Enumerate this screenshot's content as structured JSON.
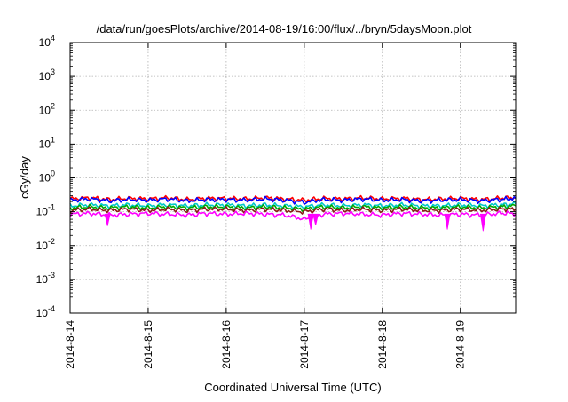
{
  "chart_data": {
    "type": "line",
    "title": "/data/run/goesPlots/archive/2014-08-19/16:00/flux/../bryn/5daysMoon.plot",
    "xlabel": "Coordinated Universal Time (UTC)",
    "ylabel": "cGy/day",
    "yscale": "log",
    "ylim": [
      0.0001,
      10000
    ],
    "xlim": [
      "2014-08-14T00:00",
      "2014-08-19T17:00"
    ],
    "grid": true,
    "legend": "none",
    "x_ticks": [
      "2014-8-14",
      "2014-8-15",
      "2014-8-16",
      "2014-8-17",
      "2014-8-18",
      "2014-8-19"
    ],
    "y_ticks": [
      {
        "base": "10",
        "exp": "-4",
        "value": 0.0001
      },
      {
        "base": "10",
        "exp": "-3",
        "value": 0.001
      },
      {
        "base": "10",
        "exp": "-2",
        "value": 0.01
      },
      {
        "base": "10",
        "exp": "-1",
        "value": 0.1
      },
      {
        "base": "10",
        "exp": "0",
        "value": 1
      },
      {
        "base": "10",
        "exp": "1",
        "value": 10
      },
      {
        "base": "10",
        "exp": "2",
        "value": 100
      },
      {
        "base": "10",
        "exp": "3",
        "value": 1000
      },
      {
        "base": "10",
        "exp": "4",
        "value": 10000
      }
    ],
    "x": [
      "2014-08-14T00:00",
      "2014-08-14T06:00",
      "2014-08-14T12:00",
      "2014-08-14T18:00",
      "2014-08-15T00:00",
      "2014-08-15T06:00",
      "2014-08-15T12:00",
      "2014-08-15T18:00",
      "2014-08-16T00:00",
      "2014-08-16T06:00",
      "2014-08-16T12:00",
      "2014-08-16T18:00",
      "2014-08-17T00:00",
      "2014-08-17T06:00",
      "2014-08-17T12:00",
      "2014-08-17T18:00",
      "2014-08-18T00:00",
      "2014-08-18T06:00",
      "2014-08-18T12:00",
      "2014-08-18T18:00",
      "2014-08-19T00:00",
      "2014-08-19T06:00",
      "2014-08-19T12:00",
      "2014-08-19T17:00"
    ],
    "series": [
      {
        "color": "#ff0000",
        "values": [
          0.24,
          0.26,
          0.23,
          0.25,
          0.24,
          0.26,
          0.23,
          0.25,
          0.25,
          0.24,
          0.26,
          0.24,
          0.22,
          0.25,
          0.24,
          0.26,
          0.24,
          0.25,
          0.23,
          0.24,
          0.25,
          0.23,
          0.25,
          0.27
        ]
      },
      {
        "color": "#0000ff",
        "values": [
          0.22,
          0.24,
          0.21,
          0.23,
          0.22,
          0.24,
          0.21,
          0.23,
          0.23,
          0.22,
          0.24,
          0.22,
          0.19,
          0.23,
          0.22,
          0.24,
          0.22,
          0.23,
          0.21,
          0.22,
          0.23,
          0.21,
          0.23,
          0.25
        ]
      },
      {
        "color": "#00c8c8",
        "values": [
          0.15,
          0.16,
          0.15,
          0.16,
          0.15,
          0.16,
          0.15,
          0.16,
          0.16,
          0.15,
          0.16,
          0.15,
          0.14,
          0.16,
          0.15,
          0.16,
          0.15,
          0.16,
          0.15,
          0.15,
          0.16,
          0.15,
          0.16,
          0.17
        ]
      },
      {
        "color": "#00aa00",
        "values": [
          0.13,
          0.14,
          0.13,
          0.14,
          0.13,
          0.14,
          0.13,
          0.14,
          0.14,
          0.13,
          0.14,
          0.13,
          0.12,
          0.14,
          0.13,
          0.14,
          0.13,
          0.14,
          0.13,
          0.13,
          0.14,
          0.13,
          0.14,
          0.15
        ]
      },
      {
        "color": "#8b1a1a",
        "values": [
          0.11,
          0.12,
          0.11,
          0.12,
          0.11,
          0.12,
          0.11,
          0.12,
          0.12,
          0.11,
          0.12,
          0.11,
          0.1,
          0.12,
          0.11,
          0.12,
          0.11,
          0.12,
          0.11,
          0.11,
          0.12,
          0.11,
          0.12,
          0.12
        ]
      },
      {
        "color": "#ff00ff",
        "values": [
          0.085,
          0.09,
          0.08,
          0.085,
          0.09,
          0.085,
          0.08,
          0.09,
          0.085,
          0.09,
          0.085,
          0.08,
          0.06,
          0.085,
          0.09,
          0.085,
          0.08,
          0.09,
          0.085,
          0.08,
          0.085,
          0.08,
          0.09,
          0.09
        ]
      }
    ],
    "dips": [
      {
        "x": "2014-08-14T11:30",
        "value": 0.038
      },
      {
        "x": "2014-08-17T02:00",
        "value": 0.03
      },
      {
        "x": "2014-08-17T03:30",
        "value": 0.04
      },
      {
        "x": "2014-08-18T20:00",
        "value": 0.03
      },
      {
        "x": "2014-08-19T07:00",
        "value": 0.027
      }
    ]
  }
}
